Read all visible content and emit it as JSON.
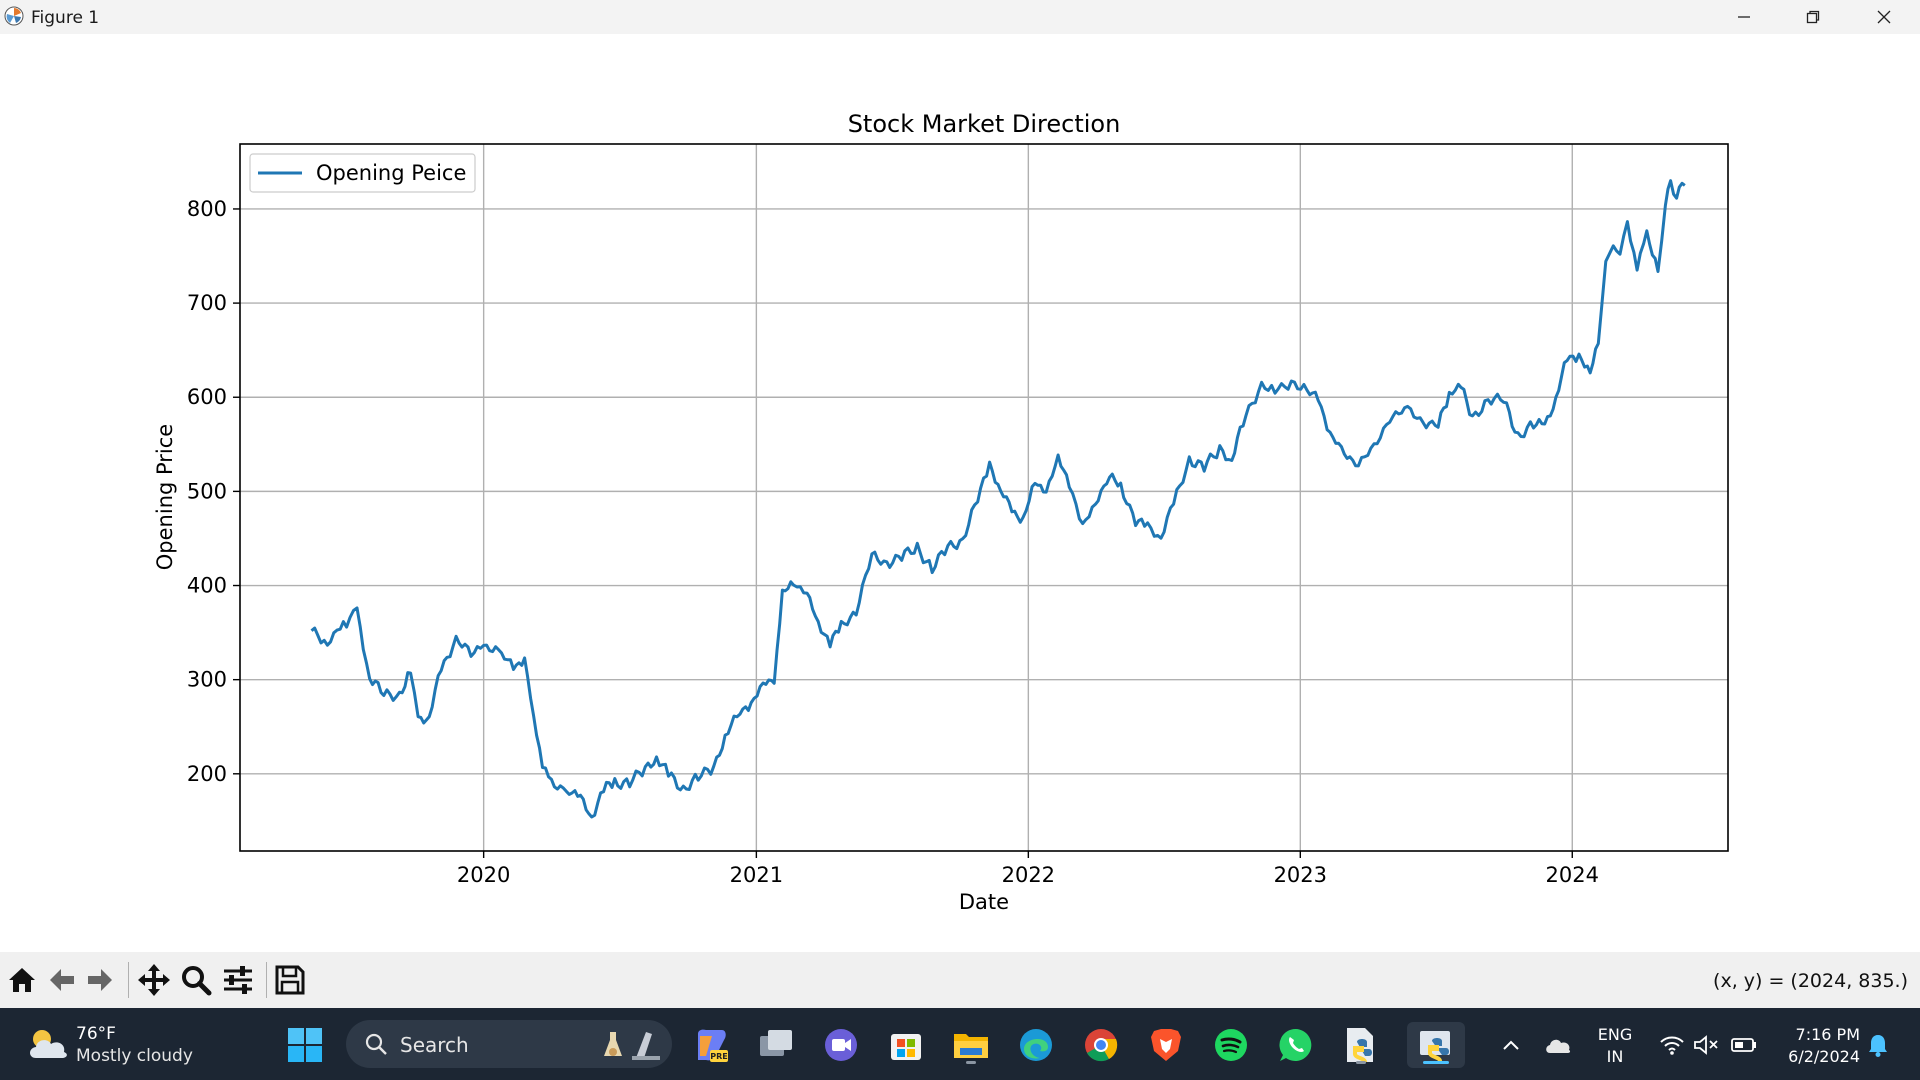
{
  "window": {
    "title": "Figure 1"
  },
  "chart_data": {
    "type": "line",
    "title": "Stock Market Direction",
    "xlabel": "Date",
    "ylabel": "Opening Price",
    "xlim": [
      "2019-02-08",
      "2024-07-28"
    ],
    "ylim": [
      118,
      869
    ],
    "xticks": [
      "2020",
      "2021",
      "2022",
      "2023",
      "2024"
    ],
    "yticks": [
      200,
      300,
      400,
      500,
      600,
      700,
      800
    ],
    "grid": true,
    "legend": "upper-left",
    "series": [
      {
        "name": "Opening Peice",
        "color": "#1f77b4",
        "points": [
          [
            "2019-05-15",
            352
          ],
          [
            "2019-06-01",
            338
          ],
          [
            "2019-07-01",
            362
          ],
          [
            "2019-07-15",
            370
          ],
          [
            "2019-08-01",
            305
          ],
          [
            "2019-08-20",
            282
          ],
          [
            "2019-09-10",
            285
          ],
          [
            "2019-09-25",
            310
          ],
          [
            "2019-10-05",
            258
          ],
          [
            "2019-10-20",
            262
          ],
          [
            "2019-11-05",
            310
          ],
          [
            "2019-11-25",
            345
          ],
          [
            "2019-12-15",
            325
          ],
          [
            "2020-01-01",
            338
          ],
          [
            "2020-01-25",
            325
          ],
          [
            "2020-02-10",
            315
          ],
          [
            "2020-02-25",
            320
          ],
          [
            "2020-03-08",
            262
          ],
          [
            "2020-03-20",
            210
          ],
          [
            "2020-04-01",
            188
          ],
          [
            "2020-04-25",
            185
          ],
          [
            "2020-05-10",
            172
          ],
          [
            "2020-05-25",
            156
          ],
          [
            "2020-06-10",
            183
          ],
          [
            "2020-06-25",
            190
          ],
          [
            "2020-07-15",
            192
          ],
          [
            "2020-08-05",
            203
          ],
          [
            "2020-08-20",
            220
          ],
          [
            "2020-09-05",
            198
          ],
          [
            "2020-09-25",
            185
          ],
          [
            "2020-10-15",
            195
          ],
          [
            "2020-11-05",
            208
          ],
          [
            "2020-11-20",
            240
          ],
          [
            "2020-12-10",
            265
          ],
          [
            "2020-12-25",
            275
          ],
          [
            "2021-01-10",
            295
          ],
          [
            "2021-01-25",
            300
          ],
          [
            "2021-02-05",
            390
          ],
          [
            "2021-02-20",
            405
          ],
          [
            "2021-03-10",
            390
          ],
          [
            "2021-03-25",
            360
          ],
          [
            "2021-04-10",
            340
          ],
          [
            "2021-04-25",
            355
          ],
          [
            "2021-05-15",
            375
          ],
          [
            "2021-06-05",
            430
          ],
          [
            "2021-06-25",
            425
          ],
          [
            "2021-07-15",
            430
          ],
          [
            "2021-08-05",
            440
          ],
          [
            "2021-08-25",
            418
          ],
          [
            "2021-09-15",
            440
          ],
          [
            "2021-10-05",
            450
          ],
          [
            "2021-10-25",
            490
          ],
          [
            "2021-11-10",
            530
          ],
          [
            "2021-11-25",
            500
          ],
          [
            "2021-12-10",
            480
          ],
          [
            "2021-12-25",
            470
          ],
          [
            "2022-01-10",
            510
          ],
          [
            "2022-01-25",
            500
          ],
          [
            "2022-02-10",
            535
          ],
          [
            "2022-02-25",
            510
          ],
          [
            "2022-03-15",
            460
          ],
          [
            "2022-04-01",
            490
          ],
          [
            "2022-04-20",
            515
          ],
          [
            "2022-05-05",
            505
          ],
          [
            "2022-05-25",
            470
          ],
          [
            "2022-06-10",
            460
          ],
          [
            "2022-06-28",
            455
          ],
          [
            "2022-07-15",
            485
          ],
          [
            "2022-08-05",
            535
          ],
          [
            "2022-08-25",
            525
          ],
          [
            "2022-09-15",
            545
          ],
          [
            "2022-10-01",
            535
          ],
          [
            "2022-10-20",
            580
          ],
          [
            "2022-11-10",
            615
          ],
          [
            "2022-11-28",
            605
          ],
          [
            "2022-12-20",
            618
          ],
          [
            "2023-01-10",
            605
          ],
          [
            "2023-01-25",
            600
          ],
          [
            "2023-02-10",
            560
          ],
          [
            "2023-03-01",
            540
          ],
          [
            "2023-03-20",
            530
          ],
          [
            "2023-04-10",
            545
          ],
          [
            "2023-05-01",
            580
          ],
          [
            "2023-05-25",
            585
          ],
          [
            "2023-06-15",
            575
          ],
          [
            "2023-07-05",
            570
          ],
          [
            "2023-07-20",
            600
          ],
          [
            "2023-08-01",
            620
          ],
          [
            "2023-08-20",
            575
          ],
          [
            "2023-09-10",
            600
          ],
          [
            "2023-10-01",
            595
          ],
          [
            "2023-10-20",
            560
          ],
          [
            "2023-11-10",
            570
          ],
          [
            "2023-11-25",
            570
          ],
          [
            "2023-12-10",
            600
          ],
          [
            "2023-12-25",
            640
          ],
          [
            "2024-01-10",
            645
          ],
          [
            "2024-01-25",
            625
          ],
          [
            "2024-02-05",
            660
          ],
          [
            "2024-02-15",
            740
          ],
          [
            "2024-02-25",
            765
          ],
          [
            "2024-03-05",
            750
          ],
          [
            "2024-03-15",
            785
          ],
          [
            "2024-03-28",
            740
          ],
          [
            "2024-04-10",
            770
          ],
          [
            "2024-04-25",
            740
          ],
          [
            "2024-05-05",
            800
          ],
          [
            "2024-05-12",
            830
          ],
          [
            "2024-05-20",
            815
          ],
          [
            "2024-05-31",
            825
          ]
        ]
      }
    ]
  },
  "toolbar": {
    "buttons": [
      {
        "name": "home-icon"
      },
      {
        "name": "back-icon"
      },
      {
        "name": "forward-icon"
      },
      {
        "name": "pan-icon"
      },
      {
        "name": "zoom-icon"
      },
      {
        "name": "configure-subplots-icon"
      },
      {
        "name": "save-icon"
      }
    ],
    "coordinate_readout": "(x, y) = (2024, 835.)"
  },
  "taskbar": {
    "weather": {
      "temp": "76°F",
      "condition": "Mostly cloudy"
    },
    "search_label": "Search",
    "language": {
      "line1": "ENG",
      "line2": "IN"
    },
    "clock": {
      "time": "7:16 PM",
      "date": "6/2/2024"
    }
  }
}
